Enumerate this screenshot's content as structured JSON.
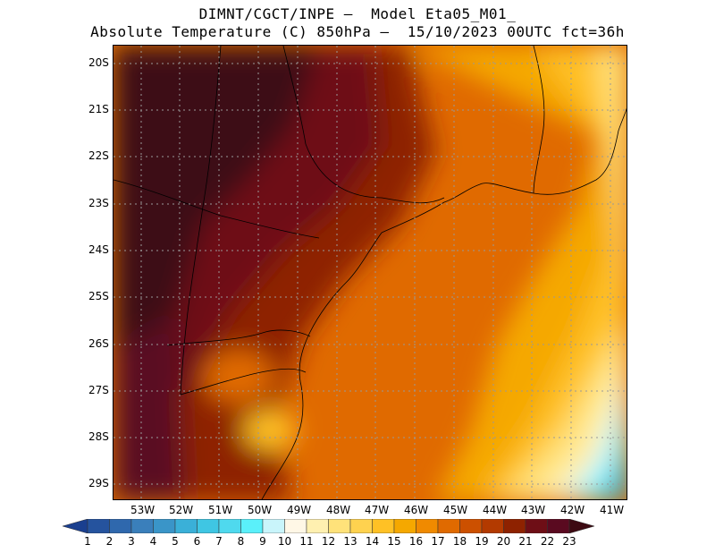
{
  "title": {
    "line1": "DIMNT/CGCT/INPE –  Model Eta05_M01_",
    "line2": "Absolute Temperature (C) 850hPa –  15/10/2023 00UTC fct=36h"
  },
  "axes": {
    "lat_labels": [
      "20S",
      "21S",
      "22S",
      "23S",
      "24S",
      "25S",
      "26S",
      "27S",
      "28S",
      "29S"
    ],
    "lon_labels": [
      "53W",
      "52W",
      "51W",
      "50W",
      "49W",
      "48W",
      "47W",
      "46W",
      "45W",
      "44W",
      "43W",
      "42W",
      "41W"
    ]
  },
  "colorbar": {
    "labels": [
      "1",
      "2",
      "3",
      "4",
      "5",
      "6",
      "7",
      "8",
      "9",
      "10",
      "11",
      "12",
      "13",
      "14",
      "15",
      "16",
      "17",
      "18",
      "19",
      "20",
      "21",
      "22",
      "23"
    ],
    "colors": [
      "#1a3f8f",
      "#25539e",
      "#2f68ad",
      "#3a7fbb",
      "#3a95c8",
      "#3ab0d8",
      "#3fc6e3",
      "#4fd9ee",
      "#5af0fa",
      "#c9f5fb",
      "#fff7e6",
      "#fff0b0",
      "#ffe27a",
      "#ffd24f",
      "#ffc125",
      "#f5a800",
      "#f08a00",
      "#e06a00",
      "#cc5000",
      "#b33a00",
      "#8e2200",
      "#6e0e16",
      "#5a0a20",
      "#3d0a12"
    ]
  },
  "map_fields": {
    "variable": "temperature-850hPa",
    "units": "C",
    "lat_range": [
      -29.4,
      -19.6
    ],
    "lon_range": [
      -53.6,
      -40.6
    ]
  }
}
